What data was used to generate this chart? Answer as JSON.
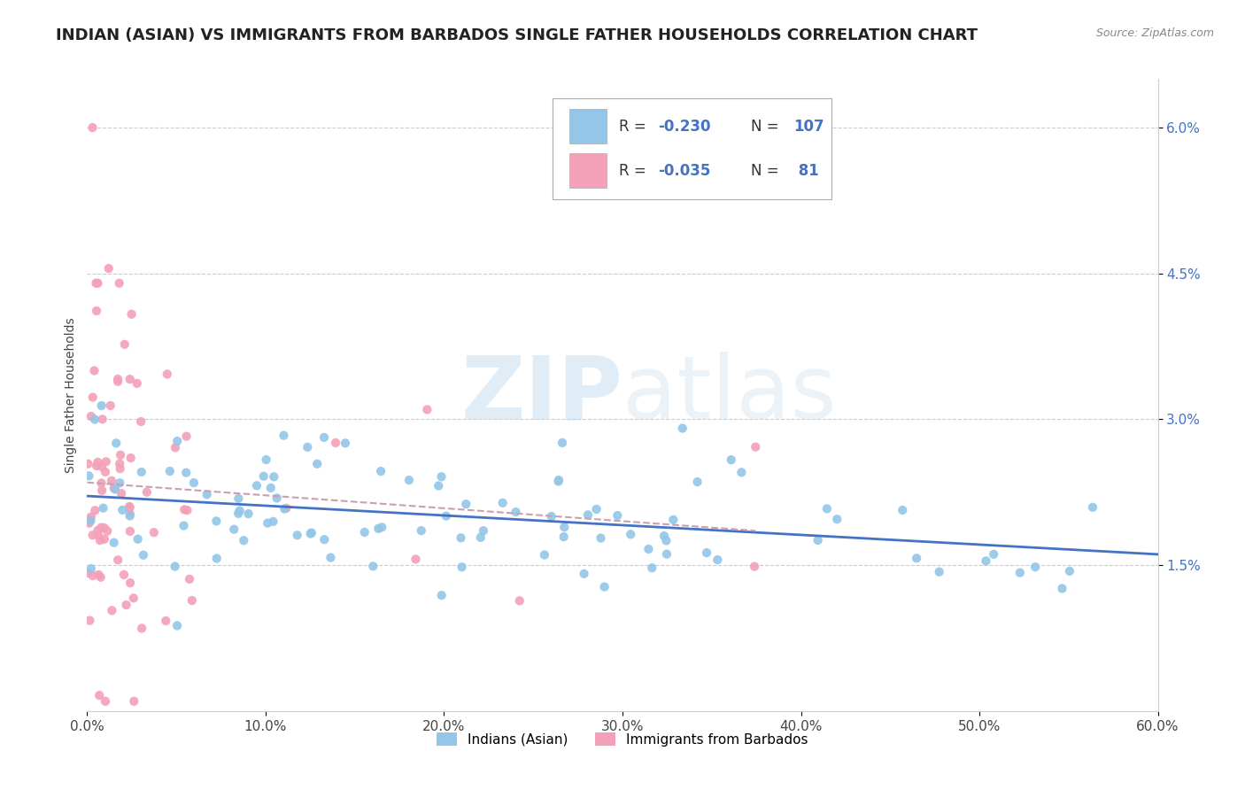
{
  "title": "INDIAN (ASIAN) VS IMMIGRANTS FROM BARBADOS SINGLE FATHER HOUSEHOLDS CORRELATION CHART",
  "source_text": "Source: ZipAtlas.com",
  "ylabel": "Single Father Households",
  "xlim": [
    0.0,
    0.6
  ],
  "ylim": [
    0.0,
    0.065
  ],
  "xtick_labels": [
    "0.0%",
    "10.0%",
    "20.0%",
    "30.0%",
    "40.0%",
    "50.0%",
    "60.0%"
  ],
  "xtick_values": [
    0.0,
    0.1,
    0.2,
    0.3,
    0.4,
    0.5,
    0.6
  ],
  "ytick_labels": [
    "1.5%",
    "3.0%",
    "4.5%",
    "6.0%"
  ],
  "ytick_values": [
    0.015,
    0.03,
    0.045,
    0.06
  ],
  "indian_color": "#93C6E8",
  "barbados_color": "#F4A0B8",
  "indian_line_color": "#4472C4",
  "barbados_line_color": "#C8A0B0",
  "legend_R1": "-0.230",
  "legend_N1": "107",
  "legend_R2": "-0.035",
  "legend_N2": "81",
  "watermark_text": "ZIPatlas",
  "title_fontsize": 13,
  "source_fontsize": 9,
  "tick_fontsize": 11
}
